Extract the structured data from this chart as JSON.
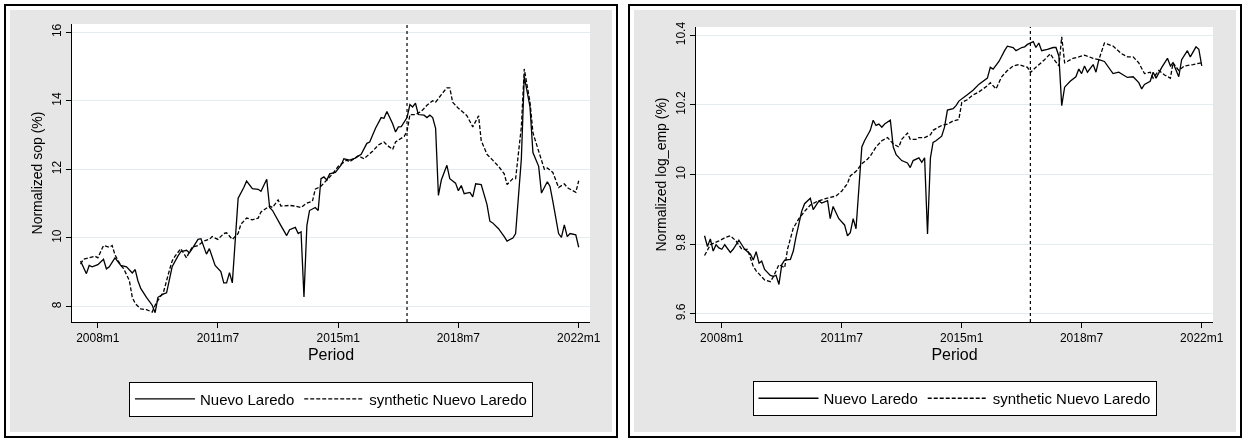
{
  "chart_data": [
    {
      "type": "line",
      "xlabel": "Period",
      "ylabel": "Normalized sop (%)",
      "grid": "y",
      "legend": "bottom",
      "xlim": [
        "2007-04",
        "2022-05"
      ],
      "xticks": [
        {
          "value": "2008-01",
          "label": "2008m1"
        },
        {
          "value": "2011-07",
          "label": "2011m7"
        },
        {
          "value": "2015-01",
          "label": "2015m1"
        },
        {
          "value": "2018-07",
          "label": "2018m7"
        },
        {
          "value": "2022-01",
          "label": "2022m1"
        }
      ],
      "ylim": [
        7.55,
        16.24
      ],
      "yticks": [
        8,
        10,
        12,
        14,
        16
      ],
      "ref_lines": [
        {
          "axis": "x",
          "value": "2017-01",
          "color": "#000000",
          "line_style": "dotted"
        }
      ],
      "series": [
        {
          "name": "Nuevo Laredo",
          "color": "#000000",
          "line_style": "solid",
          "x": [
            "2007-07",
            "2007-09",
            "2007-10",
            "2007-11",
            "2008-01",
            "2008-03",
            "2008-04",
            "2008-05",
            "2008-07",
            "2008-09",
            "2008-11",
            "2009-01",
            "2009-02",
            "2009-03",
            "2009-04",
            "2009-06",
            "2009-08",
            "2009-09",
            "2009-10",
            "2009-12",
            "2010-01",
            "2010-02",
            "2010-03",
            "2010-05",
            "2010-06",
            "2010-08",
            "2010-09",
            "2010-10",
            "2010-12",
            "2011-01",
            "2011-03",
            "2011-04",
            "2011-06",
            "2011-08",
            "2011-09",
            "2011-10",
            "2011-11",
            "2011-12",
            "2012-02",
            "2012-04",
            "2012-05",
            "2012-07",
            "2012-09",
            "2012-10",
            "2012-12",
            "2013-01",
            "2013-02",
            "2013-05",
            "2013-07",
            "2013-08",
            "2013-10",
            "2013-11",
            "2013-12",
            "2014-01",
            "2014-02",
            "2014-03",
            "2014-05",
            "2014-06",
            "2014-07",
            "2014-08",
            "2014-09",
            "2014-10",
            "2014-12",
            "2015-02",
            "2015-03",
            "2015-05",
            "2015-07",
            "2015-09",
            "2015-11",
            "2015-12",
            "2016-02",
            "2016-04",
            "2016-05",
            "2016-06",
            "2016-08",
            "2016-09",
            "2016-10",
            "2016-11",
            "2017-01",
            "2017-02",
            "2017-03",
            "2017-04",
            "2017-05",
            "2017-07",
            "2017-08",
            "2017-09",
            "2017-10",
            "2017-11",
            "2017-12",
            "2018-01",
            "2018-03",
            "2018-04",
            "2018-06",
            "2018-07",
            "2018-08",
            "2018-09",
            "2018-11",
            "2018-12",
            "2019-01",
            "2019-03",
            "2019-05",
            "2019-06",
            "2019-07",
            "2019-09",
            "2019-11",
            "2019-12",
            "2020-02",
            "2020-03",
            "2020-05",
            "2020-06",
            "2020-08",
            "2020-09",
            "2020-11",
            "2020-12",
            "2021-02",
            "2021-03",
            "2021-04",
            "2021-06",
            "2021-07",
            "2021-08",
            "2021-09",
            "2021-10",
            "2021-12",
            "2022-01"
          ],
          "values": [
            9.33,
            8.96,
            9.2,
            9.16,
            9.22,
            9.38,
            9.1,
            9.16,
            9.42,
            9.2,
            9.16,
            8.98,
            9.08,
            8.76,
            8.53,
            8.27,
            8.04,
            7.82,
            8.27,
            8.37,
            8.4,
            8.8,
            9.16,
            9.47,
            9.6,
            9.64,
            9.57,
            9.69,
            9.96,
            9.98,
            9.53,
            9.69,
            9.2,
            9.02,
            8.69,
            8.69,
            8.99,
            8.69,
            11.16,
            11.47,
            11.66,
            11.44,
            11.42,
            11.36,
            11.71,
            10.89,
            10.8,
            10.36,
            10.07,
            10.24,
            10.31,
            10.13,
            10.18,
            8.28,
            10.36,
            10.8,
            10.89,
            10.8,
            11.73,
            11.78,
            11.69,
            11.87,
            11.91,
            12.13,
            12.31,
            12.27,
            12.33,
            12.44,
            12.76,
            12.8,
            13.2,
            13.51,
            13.49,
            13.69,
            13.33,
            13.09,
            13.24,
            13.25,
            13.51,
            13.89,
            13.82,
            13.93,
            13.6,
            13.58,
            13.51,
            13.58,
            13.51,
            13.2,
            11.24,
            11.69,
            12.12,
            11.73,
            11.6,
            11.38,
            11.53,
            11.29,
            11.33,
            11.2,
            11.58,
            11.56,
            10.98,
            10.49,
            10.44,
            10.27,
            10.04,
            9.91,
            10.0,
            10.13,
            12.31,
            14.71,
            13.82,
            12.49,
            12.09,
            11.31,
            11.64,
            11.51,
            11.07,
            10.13,
            10.02,
            10.38,
            10.04,
            10.13,
            10.09,
            9.73
          ]
        },
        {
          "name": "synthetic Nuevo Laredo",
          "color": "#000000",
          "line_style": "dashed",
          "x": [
            "2007-07",
            "2007-08",
            "2007-10",
            "2007-12",
            "2008-01",
            "2008-03",
            "2008-05",
            "2008-06",
            "2008-07",
            "2008-09",
            "2008-10",
            "2008-12",
            "2009-01",
            "2009-02",
            "2009-04",
            "2009-06",
            "2009-08",
            "2009-09",
            "2009-10",
            "2009-12",
            "2010-02",
            "2010-03",
            "2010-04",
            "2010-06",
            "2010-08",
            "2010-09",
            "2010-10",
            "2010-12",
            "2011-02",
            "2011-04",
            "2011-05",
            "2011-07",
            "2011-09",
            "2011-10",
            "2011-12",
            "2012-02",
            "2012-03",
            "2012-05",
            "2012-07",
            "2012-09",
            "2012-10",
            "2013-01",
            "2013-02",
            "2013-04",
            "2013-05",
            "2013-08",
            "2013-10",
            "2013-12",
            "2014-02",
            "2014-04",
            "2014-05",
            "2014-07",
            "2014-09",
            "2014-11",
            "2015-01",
            "2015-04",
            "2015-05",
            "2015-08",
            "2015-10",
            "2016-01",
            "2016-03",
            "2016-05",
            "2016-06",
            "2016-08",
            "2016-09",
            "2016-12",
            "2017-01",
            "2017-02",
            "2017-04",
            "2017-06",
            "2017-08",
            "2017-10",
            "2017-11",
            "2018-01",
            "2018-03",
            "2018-04",
            "2018-05",
            "2018-07",
            "2018-09",
            "2018-10",
            "2018-12",
            "2019-02",
            "2019-03",
            "2019-05",
            "2019-07",
            "2019-09",
            "2019-11",
            "2019-12",
            "2020-02",
            "2020-03",
            "2020-05",
            "2020-06",
            "2020-08",
            "2020-09",
            "2020-11",
            "2021-01",
            "2021-02",
            "2021-04",
            "2021-06",
            "2021-08",
            "2021-09",
            "2021-12",
            "2022-01"
          ],
          "values": [
            9.24,
            9.38,
            9.42,
            9.47,
            9.42,
            9.78,
            9.73,
            9.78,
            9.51,
            9.2,
            9.11,
            8.76,
            8.27,
            8.09,
            7.93,
            7.91,
            7.84,
            8.04,
            8.18,
            8.44,
            9.07,
            9.33,
            9.47,
            9.69,
            9.42,
            9.6,
            9.73,
            9.78,
            9.91,
            9.96,
            10.04,
            9.96,
            10.13,
            10.15,
            9.96,
            10.13,
            10.4,
            10.58,
            10.53,
            10.58,
            10.76,
            10.93,
            10.89,
            11.11,
            10.93,
            10.95,
            10.93,
            10.89,
            11.02,
            11.07,
            11.42,
            11.51,
            11.69,
            11.87,
            12.09,
            12.27,
            12.22,
            12.4,
            12.31,
            12.53,
            12.71,
            12.8,
            12.71,
            12.58,
            12.8,
            12.96,
            13.11,
            13.6,
            13.6,
            13.69,
            13.87,
            14.0,
            13.96,
            14.18,
            14.38,
            14.38,
            13.96,
            13.78,
            13.64,
            13.56,
            13.24,
            13.56,
            12.84,
            12.44,
            12.27,
            12.09,
            11.87,
            11.56,
            11.73,
            11.73,
            13.24,
            14.93,
            13.96,
            13.07,
            12.53,
            12.0,
            12.04,
            11.91,
            11.47,
            11.58,
            11.47,
            11.33,
            11.67
          ]
        }
      ]
    },
    {
      "type": "line",
      "xlabel": "Period",
      "ylabel": "Normalized log_emp (%)",
      "grid": "y",
      "legend": "bottom",
      "xlim": [
        "2007-04",
        "2022-05"
      ],
      "xticks": [
        {
          "value": "2008-01",
          "label": "2008m1"
        },
        {
          "value": "2011-07",
          "label": "2011m7"
        },
        {
          "value": "2015-01",
          "label": "2015m1"
        },
        {
          "value": "2018-07",
          "label": "2018m7"
        },
        {
          "value": "2022-01",
          "label": "2022m1"
        }
      ],
      "ylim": [
        9.576,
        10.424
      ],
      "yticks": [
        9.6,
        9.8,
        10,
        10.2,
        10.4
      ],
      "ref_lines": [
        {
          "axis": "x",
          "value": "2017-01",
          "color": "#000000",
          "line_style": "dotted"
        }
      ],
      "series": [
        {
          "name": "Nuevo Laredo",
          "color": "#000000",
          "line_style": "solid",
          "x": [
            "2007-07",
            "2007-08",
            "2007-09",
            "2007-10",
            "2007-11",
            "2007-12",
            "2008-01",
            "2008-02",
            "2008-04",
            "2008-05",
            "2008-07",
            "2008-08",
            "2008-09",
            "2008-11",
            "2008-12",
            "2009-01",
            "2009-02",
            "2009-03",
            "2009-04",
            "2009-06",
            "2009-07",
            "2009-08",
            "2009-09",
            "2009-10",
            "2009-11",
            "2010-01",
            "2010-02",
            "2010-03",
            "2010-05",
            "2010-06",
            "2010-08",
            "2010-09",
            "2010-11",
            "2010-12",
            "2011-02",
            "2011-03",
            "2011-04",
            "2011-06",
            "2011-08",
            "2011-09",
            "2011-10",
            "2011-11",
            "2011-12",
            "2012-02",
            "2012-03",
            "2012-05",
            "2012-06",
            "2012-07",
            "2012-08",
            "2012-09",
            "2012-10",
            "2012-12",
            "2013-01",
            "2013-02",
            "2013-04",
            "2013-06",
            "2013-07",
            "2013-08",
            "2013-10",
            "2013-11",
            "2013-12",
            "2014-01",
            "2014-02",
            "2014-03",
            "2014-04",
            "2014-06",
            "2014-07",
            "2014-08",
            "2014-10",
            "2014-11",
            "2014-12",
            "2015-03",
            "2015-05",
            "2015-07",
            "2015-10",
            "2015-11",
            "2015-12",
            "2016-02",
            "2016-04",
            "2016-05",
            "2016-07",
            "2016-08",
            "2016-10",
            "2016-11",
            "2016-12",
            "2017-02",
            "2017-03",
            "2017-04",
            "2017-05",
            "2017-07",
            "2017-09",
            "2017-10",
            "2017-11",
            "2017-12",
            "2018-01",
            "2018-03",
            "2018-05",
            "2018-06",
            "2018-07",
            "2018-08",
            "2018-09",
            "2018-11",
            "2018-12",
            "2019-01",
            "2019-03",
            "2019-06",
            "2019-08",
            "2019-11",
            "2020-01",
            "2020-03",
            "2020-04",
            "2020-05",
            "2020-07",
            "2020-08",
            "2020-09",
            "2020-11",
            "2021-01",
            "2021-02",
            "2021-03",
            "2021-05",
            "2021-06",
            "2021-08",
            "2021-09",
            "2021-11",
            "2021-12",
            "2022-01"
          ],
          "values": [
            9.824,
            9.793,
            9.815,
            9.78,
            9.798,
            9.789,
            9.785,
            9.798,
            9.776,
            9.785,
            9.811,
            9.798,
            9.785,
            9.771,
            9.754,
            9.778,
            9.745,
            9.751,
            9.727,
            9.71,
            9.707,
            9.71,
            9.684,
            9.741,
            9.754,
            9.756,
            9.78,
            9.82,
            9.894,
            9.916,
            9.932,
            9.899,
            9.924,
            9.918,
            9.925,
            9.873,
            9.908,
            9.873,
            9.855,
            9.824,
            9.833,
            9.873,
            9.844,
            10.079,
            10.097,
            10.127,
            10.156,
            10.141,
            10.145,
            10.136,
            10.145,
            10.156,
            10.079,
            10.057,
            10.04,
            10.033,
            10.02,
            10.04,
            10.048,
            10.035,
            10.048,
            9.829,
            10.048,
            10.092,
            10.097,
            10.11,
            10.136,
            10.185,
            10.189,
            10.198,
            10.211,
            10.229,
            10.242,
            10.259,
            10.277,
            10.308,
            10.303,
            10.325,
            10.356,
            10.369,
            10.365,
            10.356,
            10.365,
            10.367,
            10.374,
            10.382,
            10.365,
            10.378,
            10.356,
            10.36,
            10.365,
            10.365,
            10.34,
            10.198,
            10.251,
            10.268,
            10.281,
            10.303,
            10.29,
            10.312,
            10.294,
            10.316,
            10.294,
            10.33,
            10.325,
            10.29,
            10.294,
            10.279,
            10.281,
            10.264,
            10.246,
            10.259,
            10.268,
            10.294,
            10.277,
            10.308,
            10.334,
            10.312,
            10.321,
            10.281,
            10.33,
            10.356,
            10.338,
            10.367,
            10.36,
            10.312
          ]
        },
        {
          "name": "synthetic Nuevo Laredo",
          "color": "#000000",
          "line_style": "dashed",
          "x": [
            "2007-07",
            "2007-09",
            "2007-10",
            "2007-12",
            "2008-02",
            "2008-04",
            "2008-06",
            "2008-08",
            "2008-10",
            "2008-12",
            "2009-01",
            "2009-04",
            "2009-06",
            "2009-07",
            "2009-09",
            "2009-11",
            "2009-12",
            "2010-02",
            "2010-04",
            "2010-06",
            "2010-08",
            "2010-10",
            "2011-01",
            "2011-03",
            "2011-05",
            "2011-07",
            "2011-09",
            "2011-10",
            "2011-12",
            "2012-02",
            "2012-04",
            "2012-05",
            "2012-07",
            "2012-09",
            "2012-11",
            "2013-01",
            "2013-03",
            "2013-04",
            "2013-06",
            "2013-07",
            "2013-09",
            "2013-10",
            "2013-12",
            "2014-02",
            "2014-03",
            "2014-04",
            "2014-06",
            "2014-08",
            "2014-10",
            "2014-12",
            "2015-01",
            "2015-03",
            "2015-05",
            "2015-07",
            "2015-10",
            "2015-11",
            "2016-01",
            "2016-03",
            "2016-05",
            "2016-07",
            "2016-09",
            "2016-12",
            "2017-01",
            "2017-03",
            "2017-06",
            "2017-08",
            "2017-09",
            "2017-11",
            "2017-12",
            "2018-01",
            "2018-04",
            "2018-06",
            "2018-08",
            "2018-11",
            "2019-01",
            "2019-03",
            "2019-06",
            "2019-09",
            "2019-11",
            "2020-01",
            "2020-03",
            "2020-05",
            "2020-07",
            "2020-08",
            "2020-10",
            "2020-12",
            "2021-02",
            "2021-03",
            "2021-05",
            "2021-07",
            "2021-10",
            "2022-01"
          ],
          "values": [
            9.767,
            9.798,
            9.802,
            9.809,
            9.818,
            9.824,
            9.809,
            9.785,
            9.785,
            9.736,
            9.723,
            9.697,
            9.692,
            9.705,
            9.741,
            9.732,
            9.785,
            9.846,
            9.873,
            9.894,
            9.912,
            9.921,
            9.93,
            9.934,
            9.938,
            9.952,
            9.974,
            9.996,
            10.009,
            10.031,
            10.044,
            10.053,
            10.079,
            10.097,
            10.106,
            10.088,
            10.079,
            10.101,
            10.119,
            10.101,
            10.101,
            10.106,
            10.106,
            10.114,
            10.127,
            10.132,
            10.141,
            10.145,
            10.154,
            10.158,
            10.207,
            10.215,
            10.229,
            10.237,
            10.255,
            10.264,
            10.246,
            10.281,
            10.299,
            10.312,
            10.316,
            10.308,
            10.293,
            10.308,
            10.33,
            10.347,
            10.334,
            10.312,
            10.396,
            10.321,
            10.334,
            10.338,
            10.343,
            10.334,
            10.33,
            10.378,
            10.369,
            10.347,
            10.338,
            10.338,
            10.321,
            10.29,
            10.294,
            10.277,
            10.299,
            10.286,
            10.277,
            10.321,
            10.299,
            10.312,
            10.316,
            10.321
          ]
        }
      ]
    }
  ]
}
